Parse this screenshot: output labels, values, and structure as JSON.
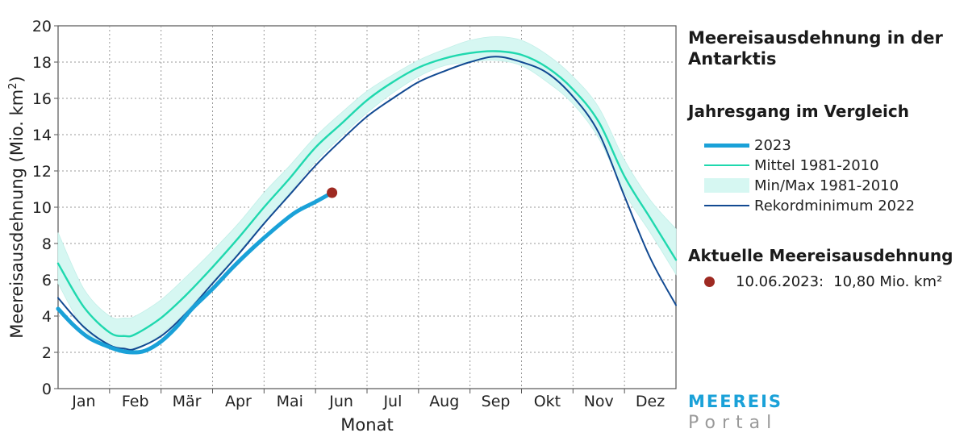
{
  "header": {
    "title": "Meereisausdehnung in der Antarktis",
    "subtitle": "Jahresgang im Vergleich",
    "current_heading": "Aktuelle Meereisausdehnung"
  },
  "current": {
    "date": "10.06.2023:",
    "value_text": "10,80 Mio. km²",
    "color": "#9e2a22"
  },
  "brand": {
    "top": "MEEREIS",
    "bottom": "Portal",
    "top_color": "#1aa1d8",
    "bottom_color": "#9a9a9a"
  },
  "legend": {
    "items": [
      {
        "label": "2023",
        "color": "#1aa1d8",
        "kind": "thick-line"
      },
      {
        "label": "Mittel 1981-2010",
        "color": "#1fd8ae",
        "kind": "line"
      },
      {
        "label": "Min/Max 1981-2010",
        "color": "#d6f7f2",
        "kind": "band"
      },
      {
        "label": "Rekordminimum 2022",
        "color": "#124a92",
        "kind": "line"
      }
    ]
  },
  "chart_data": {
    "type": "line",
    "xlabel": "Monat",
    "ylabel": "Meereisausdehnung (Mio. km²)",
    "ylim": [
      0,
      20
    ],
    "xlim": [
      0,
      12
    ],
    "yticks": [
      0,
      2,
      4,
      6,
      8,
      10,
      12,
      14,
      16,
      18,
      20
    ],
    "month_labels": [
      "Jan",
      "Feb",
      "Mär",
      "Apr",
      "Mai",
      "Jun",
      "Jul",
      "Aug",
      "Sep",
      "Okt",
      "Nov",
      "Dez"
    ],
    "grid": true,
    "series": [
      {
        "name": "Min/Max 1981-2010",
        "type": "band",
        "color": "#d6f7f2",
        "x": [
          0,
          0.5,
          1,
          1.3,
          1.5,
          2,
          2.5,
          3,
          3.5,
          4,
          4.5,
          5,
          5.5,
          6,
          6.5,
          7,
          7.5,
          8,
          8.5,
          9,
          9.5,
          10,
          10.5,
          11,
          11.5,
          12
        ],
        "upper": [
          8.6,
          5.5,
          4.0,
          3.9,
          4.0,
          4.9,
          6.2,
          7.6,
          9.1,
          10.8,
          12.3,
          13.9,
          15.2,
          16.4,
          17.3,
          18.1,
          18.7,
          19.2,
          19.4,
          19.2,
          18.4,
          17.2,
          15.5,
          12.6,
          10.4,
          8.8
        ],
        "lower": [
          5.8,
          3.3,
          2.2,
          2.0,
          2.1,
          3.0,
          4.3,
          5.9,
          7.5,
          9.1,
          10.8,
          12.5,
          13.9,
          15.2,
          16.3,
          17.2,
          17.8,
          18.0,
          18.1,
          17.8,
          16.9,
          15.7,
          13.8,
          10.8,
          8.6,
          6.3
        ]
      },
      {
        "name": "Mittel 1981-2010",
        "color": "#1fd8ae",
        "x": [
          0,
          0.5,
          1,
          1.3,
          1.5,
          2,
          2.5,
          3,
          3.5,
          4,
          4.5,
          5,
          5.5,
          6,
          6.5,
          7,
          7.5,
          8,
          8.5,
          9,
          9.5,
          10,
          10.5,
          11,
          11.5,
          12
        ],
        "values": [
          6.9,
          4.5,
          3.1,
          2.9,
          3.0,
          3.9,
          5.2,
          6.7,
          8.3,
          10.0,
          11.6,
          13.3,
          14.6,
          15.9,
          16.9,
          17.7,
          18.2,
          18.5,
          18.6,
          18.4,
          17.7,
          16.5,
          14.7,
          11.7,
          9.4,
          7.1
        ]
      },
      {
        "name": "Rekordminimum 2022",
        "color": "#124a92",
        "x": [
          0,
          0.5,
          1,
          1.3,
          1.5,
          2,
          2.5,
          3,
          3.5,
          4,
          4.5,
          5,
          5.5,
          6,
          6.5,
          7,
          7.5,
          8,
          8.5,
          9,
          9.5,
          10,
          10.5,
          11,
          11.5,
          12
        ],
        "values": [
          5.0,
          3.4,
          2.4,
          2.2,
          2.2,
          2.9,
          4.2,
          5.8,
          7.4,
          9.1,
          10.7,
          12.3,
          13.7,
          15.0,
          16.0,
          16.9,
          17.5,
          18.0,
          18.3,
          18.0,
          17.4,
          16.1,
          14.1,
          10.6,
          7.2,
          4.6
        ]
      },
      {
        "name": "2023",
        "color": "#1aa1d8",
        "x": [
          0,
          0.3,
          0.6,
          0.9,
          1.2,
          1.45,
          1.7,
          2.0,
          2.3,
          2.6,
          3.0,
          3.4,
          3.8,
          4.2,
          4.6,
          5.0,
          5.32
        ],
        "values": [
          4.4,
          3.5,
          2.8,
          2.4,
          2.1,
          2.0,
          2.1,
          2.6,
          3.4,
          4.4,
          5.5,
          6.7,
          7.8,
          8.8,
          9.7,
          10.3,
          10.8
        ]
      }
    ],
    "current_point": {
      "x": 5.32,
      "y": 10.8,
      "label": "10.06.2023: 10,80 Mio. km²"
    }
  }
}
